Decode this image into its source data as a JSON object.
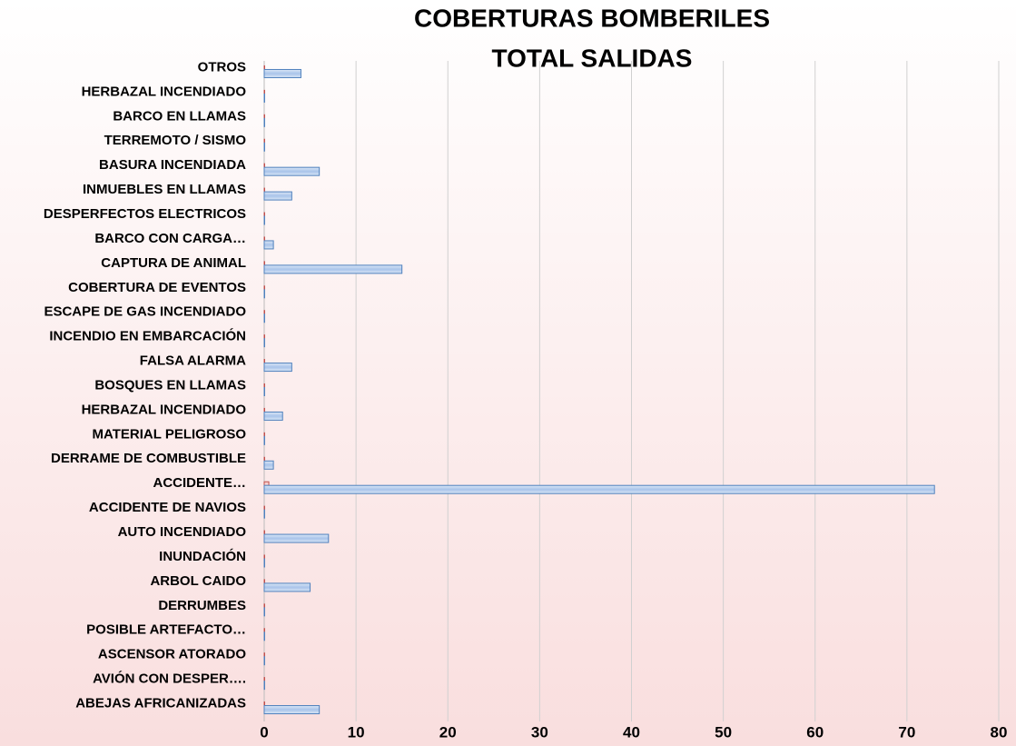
{
  "chart_data": {
    "type": "hbar",
    "title": [
      "COBERTURAS BOMBERILES",
      "TOTAL SALIDAS"
    ],
    "categories": [
      "ABEJAS AFRICANIZADAS",
      "AVIÓN CON DESPER….",
      "ASCENSOR ATORADO",
      "POSIBLE ARTEFACTO…",
      "DERRUMBES",
      "ARBOL CAIDO",
      "INUNDACIÓN",
      "AUTO INCENDIADO",
      "ACCIDENTE DE NAVIOS",
      "ACCIDENTE…",
      "DERRAME DE COMBUSTIBLE",
      "MATERIAL PELIGROSO",
      "HERBAZAL INCENDIADO",
      "BOSQUES EN LLAMAS",
      "FALSA ALARMA",
      "INCENDIO EN EMBARCACIÓN",
      "ESCAPE DE GAS INCENDIADO",
      "COBERTURA DE EVENTOS",
      "CAPTURA DE ANIMAL",
      "BARCO CON CARGA…",
      "DESPERFECTOS ELECTRICOS",
      "INMUEBLES EN LLAMAS",
      "BASURA INCENDIADA",
      "TERREMOTO / SISMO",
      "BARCO EN LLAMAS",
      "HERBAZAL INCENDIADO ",
      "OTROS"
    ],
    "series": [
      {
        "color": "#c0504d",
        "values": [
          0,
          0,
          0,
          0,
          0,
          0,
          0,
          0,
          0,
          0.5,
          0,
          0,
          0,
          0,
          0,
          0,
          0,
          0,
          0,
          0,
          0,
          0,
          0,
          0,
          0,
          0,
          0
        ]
      },
      {
        "color": "#4f81bd",
        "values": [
          6,
          0,
          0,
          0,
          0,
          5,
          0,
          7,
          0,
          73,
          1,
          0,
          2,
          0,
          3,
          0,
          0,
          0,
          15,
          1,
          0,
          3,
          6,
          0,
          0,
          0,
          4
        ]
      }
    ],
    "xlim": [
      0,
      80
    ],
    "xticks": [
      0,
      10,
      20,
      30,
      40,
      50,
      60,
      70,
      80
    ],
    "grid": true
  }
}
